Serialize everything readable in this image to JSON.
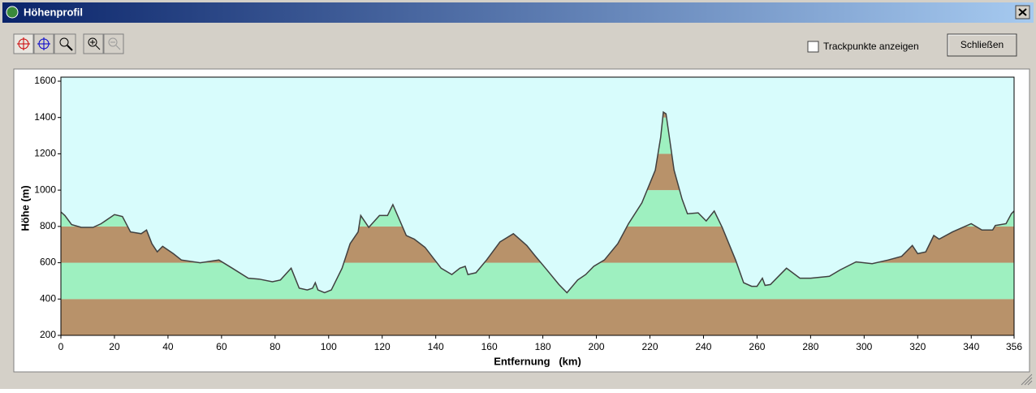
{
  "window": {
    "title": "Höhenprofil"
  },
  "controls": {
    "checkbox_label": "Trackpunkte anzeigen",
    "button_label": "Schließen"
  },
  "chart_data": {
    "type": "area",
    "x_label": "Entfernung   (km)",
    "y_label": "Höhe (m)",
    "x": [
      0,
      1.5,
      4,
      7.6,
      12,
      15,
      20,
      23,
      26,
      30,
      32,
      34,
      36,
      38,
      42,
      45,
      52,
      59,
      64,
      70,
      74,
      79,
      82,
      86,
      89,
      92,
      94,
      95,
      96,
      98.5,
      101,
      105,
      108,
      111,
      112,
      115,
      119,
      122,
      124,
      129,
      132,
      136,
      142,
      146,
      149,
      151,
      152,
      155,
      159,
      164,
      169,
      174,
      177,
      181,
      186,
      189,
      193,
      196,
      199,
      203,
      208,
      212,
      217,
      222,
      224,
      225,
      226,
      229,
      232,
      234,
      238,
      241,
      244,
      247,
      252,
      255,
      258,
      260,
      262,
      263,
      265,
      268,
      271,
      276,
      280,
      287,
      291,
      297,
      303,
      309,
      314,
      318,
      320,
      323,
      326,
      328,
      333,
      340,
      344,
      348,
      349,
      353,
      355,
      356
    ],
    "values": [
      880,
      860,
      810,
      795,
      795,
      815,
      865,
      855,
      770,
      760,
      780,
      705,
      660,
      690,
      650,
      615,
      600,
      615,
      570,
      515,
      510,
      495,
      505,
      570,
      460,
      450,
      460,
      490,
      450,
      435,
      450,
      570,
      705,
      770,
      860,
      795,
      860,
      860,
      920,
      750,
      730,
      685,
      570,
      535,
      570,
      580,
      535,
      545,
      615,
      715,
      760,
      695,
      640,
      570,
      480,
      435,
      505,
      535,
      580,
      615,
      705,
      815,
      930,
      1110,
      1290,
      1430,
      1420,
      1110,
      950,
      870,
      875,
      830,
      885,
      795,
      615,
      490,
      470,
      470,
      515,
      475,
      480,
      525,
      570,
      515,
      515,
      525,
      560,
      605,
      595,
      615,
      635,
      695,
      650,
      660,
      750,
      730,
      770,
      815,
      780,
      780,
      805,
      815,
      870,
      885
    ],
    "xlim": [
      0,
      356
    ],
    "xticks": [
      0,
      20,
      40,
      60,
      80,
      100,
      120,
      140,
      160,
      180,
      200,
      220,
      240,
      260,
      280,
      300,
      320,
      340,
      356
    ],
    "ylim": [
      200,
      1600
    ],
    "yticks": [
      200,
      400,
      600,
      800,
      1000,
      1200,
      1400,
      1600
    ],
    "background": "#d8fcfc",
    "band_colors": [
      "#b8926a",
      "#9ef0c0"
    ],
    "line_color": "#404040",
    "grid": false
  }
}
